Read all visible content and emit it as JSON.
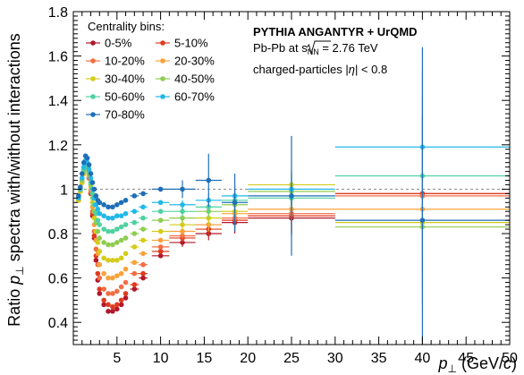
{
  "chart_data": {
    "type": "scatter",
    "title": "",
    "xlabel_main": "p",
    "xlabel_sub": "⊥",
    "xlabel_unit_open": " (GeV/",
    "xlabel_unit_c": "c",
    "xlabel_unit_close": ")",
    "ylabel_pre": "Ratio ",
    "ylabel_p": "p",
    "ylabel_sub": "⊥",
    "ylabel_post": " spectra with/without interactions",
    "xlim": [
      0,
      50
    ],
    "ylim": [
      0.3,
      1.8
    ],
    "xticks": [
      5,
      10,
      15,
      20,
      25,
      30,
      35,
      40,
      45,
      50
    ],
    "yticks": [
      0.4,
      0.6,
      0.8,
      1.0,
      1.2,
      1.4,
      1.6,
      1.8
    ],
    "ytick_labels": [
      "0.4",
      "0.6",
      "0.8",
      "1",
      "1.2",
      "1.4",
      "1.6",
      "1.8"
    ],
    "reference_line": 1.0,
    "grid": false,
    "legend_title": "Centrality bins:",
    "legend_position": "top-left",
    "annotation_line1": "PYTHIA ANGANTYR + UrQMD",
    "annotation_line2_prefix": "Pb-Pb at ",
    "annotation_sqrt_s": "s",
    "annotation_sqrt_sub": "NN",
    "annotation_line2_suffix": " = 2.76 TeV",
    "annotation_line3_prefix": "charged-particles |",
    "annotation_eta": "η",
    "annotation_line3_suffix": "| < 0.8",
    "x": [
      0.6,
      0.8,
      1.0,
      1.2,
      1.4,
      1.6,
      1.8,
      2.0,
      2.2,
      2.4,
      2.6,
      2.8,
      3.0,
      3.5,
      4.0,
      4.5,
      5.0,
      5.5,
      6.0,
      7.0,
      8.0,
      10.0,
      12.5,
      15.5,
      18.5,
      25.0,
      40.0
    ],
    "xerr_low": [
      0.1,
      0.1,
      0.1,
      0.1,
      0.1,
      0.1,
      0.1,
      0.1,
      0.1,
      0.1,
      0.1,
      0.1,
      0.1,
      0.25,
      0.25,
      0.25,
      0.25,
      0.25,
      0.25,
      0.5,
      0.5,
      1.0,
      1.5,
      1.5,
      1.5,
      5.0,
      10.0
    ],
    "xerr_high": [
      0.1,
      0.1,
      0.1,
      0.1,
      0.1,
      0.1,
      0.1,
      0.1,
      0.1,
      0.1,
      0.1,
      0.1,
      0.1,
      0.25,
      0.25,
      0.25,
      0.25,
      0.25,
      0.25,
      0.5,
      0.5,
      1.0,
      1.5,
      1.5,
      1.5,
      5.0,
      10.0
    ],
    "series": [
      {
        "name": "0-5%",
        "color": "#b2182b",
        "values": [
          0.95,
          0.99,
          1.03,
          1.07,
          1.1,
          1.09,
          1.05,
          0.98,
          0.88,
          0.78,
          0.68,
          0.59,
          0.53,
          0.48,
          0.45,
          0.45,
          0.46,
          0.48,
          0.51,
          0.55,
          0.6,
          0.7,
          0.76,
          0.8,
          0.85,
          0.87,
          0.98
        ],
        "yerr": [
          0.01,
          0.01,
          0.01,
          0.01,
          0.01,
          0.01,
          0.01,
          0.01,
          0.01,
          0.01,
          0.01,
          0.01,
          0.01,
          0.01,
          0.01,
          0.01,
          0.01,
          0.01,
          0.01,
          0.01,
          0.01,
          0.01,
          0.02,
          0.03,
          0.05,
          0.08,
          0.35
        ]
      },
      {
        "name": "5-10%",
        "color": "#e03a1e",
        "values": [
          0.95,
          0.99,
          1.03,
          1.07,
          1.1,
          1.09,
          1.05,
          0.98,
          0.89,
          0.79,
          0.7,
          0.62,
          0.55,
          0.5,
          0.48,
          0.47,
          0.48,
          0.5,
          0.53,
          0.57,
          0.62,
          0.72,
          0.78,
          0.82,
          0.86,
          0.88,
          0.98
        ],
        "yerr": [
          0.01,
          0.01,
          0.01,
          0.01,
          0.01,
          0.01,
          0.01,
          0.01,
          0.01,
          0.01,
          0.01,
          0.01,
          0.01,
          0.01,
          0.01,
          0.01,
          0.01,
          0.01,
          0.01,
          0.01,
          0.01,
          0.01,
          0.02,
          0.03,
          0.05,
          0.08,
          0.35
        ]
      },
      {
        "name": "10-20%",
        "color": "#f46d43",
        "values": [
          0.95,
          0.99,
          1.03,
          1.07,
          1.1,
          1.09,
          1.05,
          0.99,
          0.9,
          0.81,
          0.73,
          0.66,
          0.6,
          0.55,
          0.53,
          0.53,
          0.54,
          0.56,
          0.58,
          0.62,
          0.66,
          0.74,
          0.79,
          0.84,
          0.87,
          0.89,
          0.97
        ],
        "yerr": [
          0.01,
          0.01,
          0.01,
          0.01,
          0.01,
          0.01,
          0.01,
          0.01,
          0.01,
          0.01,
          0.01,
          0.01,
          0.01,
          0.01,
          0.01,
          0.01,
          0.01,
          0.01,
          0.01,
          0.01,
          0.01,
          0.01,
          0.02,
          0.03,
          0.05,
          0.08,
          0.35
        ]
      },
      {
        "name": "20-30%",
        "color": "#f9a23c",
        "values": [
          0.95,
          0.99,
          1.03,
          1.07,
          1.1,
          1.09,
          1.06,
          1.0,
          0.92,
          0.84,
          0.77,
          0.71,
          0.66,
          0.62,
          0.6,
          0.6,
          0.61,
          0.62,
          0.64,
          0.67,
          0.71,
          0.77,
          0.81,
          0.84,
          0.89,
          0.91,
          0.91
        ],
        "yerr": [
          0.01,
          0.01,
          0.01,
          0.01,
          0.01,
          0.01,
          0.01,
          0.01,
          0.01,
          0.01,
          0.01,
          0.01,
          0.01,
          0.01,
          0.01,
          0.01,
          0.01,
          0.01,
          0.01,
          0.01,
          0.01,
          0.01,
          0.02,
          0.03,
          0.05,
          0.08,
          0.35
        ]
      },
      {
        "name": "30-40%",
        "color": "#d4cc1a",
        "values": [
          0.95,
          0.99,
          1.03,
          1.07,
          1.1,
          1.1,
          1.07,
          1.01,
          0.94,
          0.87,
          0.81,
          0.76,
          0.72,
          0.69,
          0.68,
          0.68,
          0.68,
          0.69,
          0.71,
          0.74,
          0.77,
          0.81,
          0.84,
          0.87,
          0.9,
          1.02,
          0.85
        ],
        "yerr": [
          0.01,
          0.01,
          0.01,
          0.01,
          0.01,
          0.01,
          0.01,
          0.01,
          0.01,
          0.01,
          0.01,
          0.01,
          0.01,
          0.01,
          0.01,
          0.01,
          0.01,
          0.01,
          0.01,
          0.01,
          0.01,
          0.01,
          0.02,
          0.03,
          0.05,
          0.08,
          0.35
        ]
      },
      {
        "name": "40-50%",
        "color": "#8fcc52",
        "values": [
          0.96,
          1.0,
          1.04,
          1.08,
          1.11,
          1.1,
          1.07,
          1.02,
          0.96,
          0.9,
          0.85,
          0.81,
          0.78,
          0.76,
          0.75,
          0.75,
          0.76,
          0.77,
          0.78,
          0.8,
          0.82,
          0.86,
          0.87,
          0.9,
          0.93,
          0.99,
          0.83
        ],
        "yerr": [
          0.01,
          0.01,
          0.01,
          0.01,
          0.01,
          0.01,
          0.01,
          0.01,
          0.01,
          0.01,
          0.01,
          0.01,
          0.01,
          0.01,
          0.01,
          0.01,
          0.01,
          0.01,
          0.01,
          0.01,
          0.01,
          0.01,
          0.02,
          0.03,
          0.05,
          0.08,
          0.35
        ]
      },
      {
        "name": "50-60%",
        "color": "#4fd1a0",
        "values": [
          0.96,
          1.0,
          1.05,
          1.09,
          1.12,
          1.11,
          1.08,
          1.03,
          0.98,
          0.93,
          0.89,
          0.86,
          0.84,
          0.82,
          0.81,
          0.81,
          0.82,
          0.83,
          0.84,
          0.85,
          0.87,
          0.9,
          0.9,
          0.92,
          0.95,
          0.96,
          1.06
        ],
        "yerr": [
          0.01,
          0.01,
          0.01,
          0.01,
          0.01,
          0.01,
          0.01,
          0.01,
          0.01,
          0.01,
          0.01,
          0.01,
          0.01,
          0.01,
          0.01,
          0.01,
          0.01,
          0.01,
          0.01,
          0.01,
          0.01,
          0.01,
          0.02,
          0.03,
          0.05,
          0.08,
          0.35
        ]
      },
      {
        "name": "60-70%",
        "color": "#22b8e8",
        "values": [
          0.96,
          1.0,
          1.05,
          1.1,
          1.13,
          1.12,
          1.09,
          1.05,
          1.0,
          0.96,
          0.93,
          0.91,
          0.89,
          0.88,
          0.87,
          0.87,
          0.88,
          0.88,
          0.89,
          0.9,
          0.92,
          0.94,
          0.93,
          0.95,
          0.97,
          1.0,
          1.19
        ],
        "yerr": [
          0.01,
          0.01,
          0.01,
          0.01,
          0.01,
          0.01,
          0.01,
          0.01,
          0.01,
          0.01,
          0.01,
          0.01,
          0.01,
          0.01,
          0.01,
          0.01,
          0.01,
          0.01,
          0.01,
          0.01,
          0.01,
          0.01,
          0.02,
          0.03,
          0.05,
          0.08,
          0.35
        ]
      },
      {
        "name": "70-80%",
        "color": "#1f6fb8",
        "values": [
          0.97,
          1.01,
          1.07,
          1.12,
          1.15,
          1.14,
          1.11,
          1.07,
          1.03,
          1.0,
          0.97,
          0.95,
          0.94,
          0.93,
          0.92,
          0.92,
          0.93,
          0.94,
          0.95,
          0.97,
          0.98,
          1.0,
          1.0,
          1.04,
          0.94,
          0.97,
          0.86
        ],
        "yerr": [
          0.01,
          0.01,
          0.01,
          0.01,
          0.01,
          0.01,
          0.01,
          0.01,
          0.01,
          0.01,
          0.01,
          0.01,
          0.01,
          0.01,
          0.01,
          0.01,
          0.01,
          0.01,
          0.01,
          0.01,
          0.01,
          0.01,
          0.04,
          0.12,
          0.13,
          0.27,
          0.78
        ]
      }
    ]
  }
}
